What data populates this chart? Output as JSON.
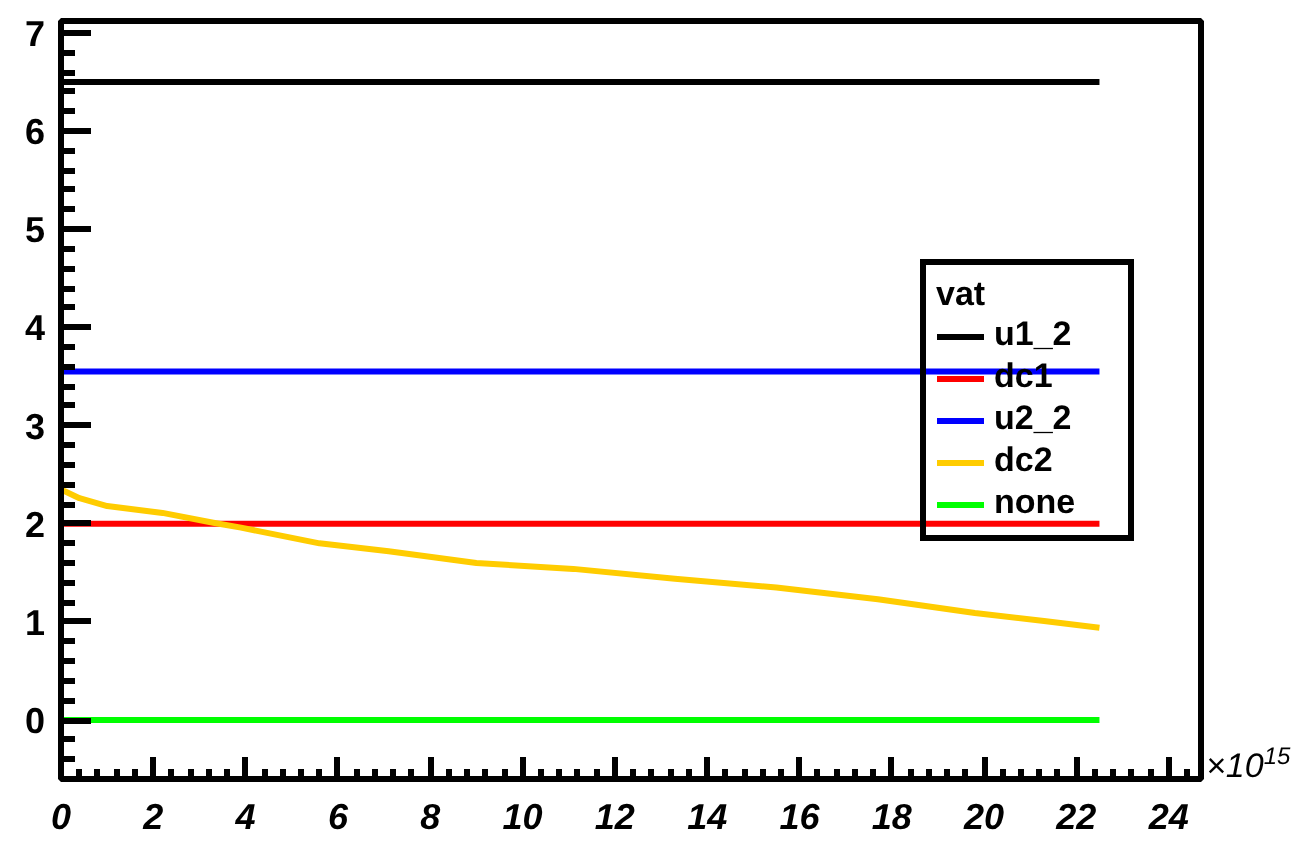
{
  "chart_data": {
    "type": "line",
    "xlabel": "×10$^{15}$",
    "xlim": [
      0,
      24.7
    ],
    "ylim": [
      -0.6,
      7.12
    ],
    "xticks": [
      0,
      2,
      4,
      6,
      8,
      10,
      12,
      14,
      16,
      18,
      20,
      22,
      24
    ],
    "yticks": [
      0,
      1,
      2,
      3,
      4,
      5,
      6,
      7
    ],
    "grid": false,
    "legend": "right",
    "legend_title": "vat",
    "series": [
      {
        "name": "u1_2",
        "color": "#000000",
        "x": [
          0,
          22.5
        ],
        "values": [
          6.5,
          6.5
        ]
      },
      {
        "name": "dc1",
        "color": "#ff0000",
        "x": [
          0,
          22.5
        ],
        "values": [
          2.0,
          2.0
        ]
      },
      {
        "name": "u2_2",
        "color": "#0000ff",
        "x": [
          0,
          22.5
        ],
        "values": [
          3.55,
          3.55
        ]
      },
      {
        "name": "dc2",
        "color": "#ffcc00",
        "x": [
          0,
          0.4,
          1,
          2.2,
          3.3,
          3.9,
          5.6,
          7.1,
          9,
          11.1,
          13.3,
          15.5,
          17.7,
          19.8,
          21.3,
          22.5
        ],
        "values": [
          2.35,
          2.26,
          2.18,
          2.11,
          2.01,
          1.96,
          1.8,
          1.72,
          1.6,
          1.54,
          1.44,
          1.35,
          1.23,
          1.09,
          1.01,
          0.94
        ]
      },
      {
        "name": "none",
        "color": "#00ff00",
        "x": [
          0,
          22.5
        ],
        "values": [
          0,
          0
        ]
      }
    ]
  }
}
